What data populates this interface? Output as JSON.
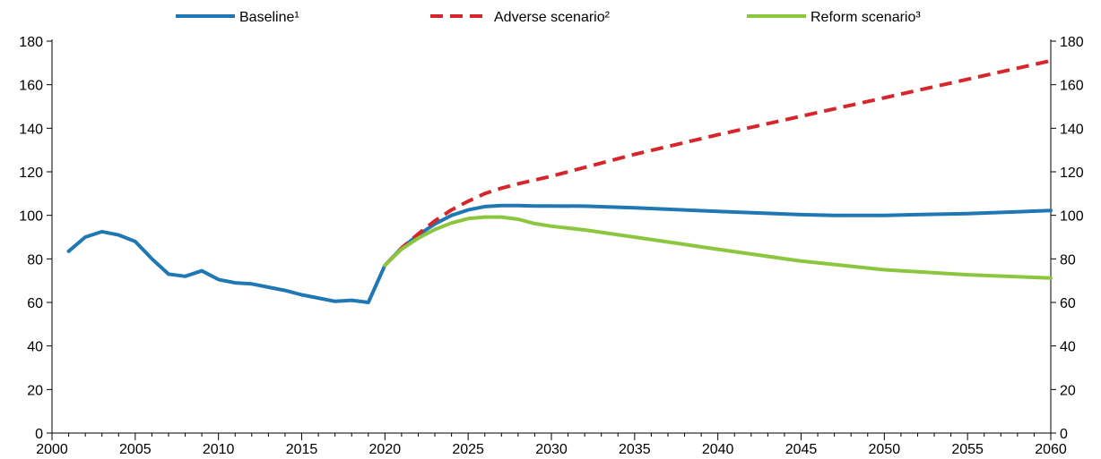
{
  "chart_data": {
    "type": "line",
    "title": "",
    "xlabel": "",
    "ylabel": "",
    "xlim": [
      2000,
      2060
    ],
    "ylim": [
      0,
      180
    ],
    "x_ticks": [
      2000,
      2005,
      2010,
      2015,
      2020,
      2025,
      2030,
      2035,
      2040,
      2045,
      2050,
      2055,
      2060
    ],
    "x_tick_labels": [
      "2000",
      "2005",
      "2010",
      "2015",
      "2020",
      "2025",
      "2030",
      "2035",
      "2040",
      "2045",
      "2050",
      "2055",
      "2060"
    ],
    "y_ticks": [
      0,
      20,
      40,
      60,
      80,
      100,
      120,
      140,
      160,
      180
    ],
    "y_tick_labels": [
      "0",
      "20",
      "40",
      "60",
      "80",
      "100",
      "120",
      "140",
      "160",
      "180"
    ],
    "grid": false,
    "legend_position": "top",
    "series": [
      {
        "name": "Baseline¹",
        "color": "#1f78b4",
        "style": "solid",
        "x": [
          2001,
          2002,
          2003,
          2004,
          2005,
          2006,
          2007,
          2008,
          2009,
          2010,
          2011,
          2012,
          2013,
          2014,
          2015,
          2016,
          2017,
          2018,
          2019,
          2020,
          2021,
          2022,
          2023,
          2024,
          2025,
          2026,
          2027,
          2028,
          2029,
          2030,
          2032,
          2035,
          2040,
          2045,
          2047,
          2050,
          2055,
          2060
        ],
        "values": [
          83.5,
          90,
          92.5,
          91,
          88,
          80,
          73,
          72,
          74.5,
          70.5,
          69,
          68.5,
          67,
          65.5,
          63.5,
          62,
          60.5,
          61,
          60,
          77,
          85,
          91,
          96,
          100,
          102.5,
          104,
          104.5,
          104.5,
          104.3,
          104.3,
          104.2,
          103.5,
          101.8,
          100.3,
          100,
          100,
          100.8,
          102.2
        ]
      },
      {
        "name": "Adverse scenario²",
        "color": "#d7262b",
        "style": "dashed",
        "x": [
          2020,
          2021,
          2022,
          2023,
          2024,
          2025,
          2026,
          2027,
          2028,
          2030,
          2035,
          2040,
          2045,
          2050,
          2055,
          2060
        ],
        "values": [
          77,
          85,
          91.5,
          97.5,
          102.5,
          106.5,
          110,
          112.5,
          114.5,
          118,
          128,
          137,
          145.5,
          154,
          162.5,
          171
        ]
      },
      {
        "name": "Reform scenario³",
        "color": "#8cc63e",
        "style": "solid",
        "x": [
          2020,
          2021,
          2022,
          2023,
          2024,
          2025,
          2026,
          2027,
          2028,
          2029,
          2030,
          2032,
          2035,
          2040,
          2045,
          2050,
          2055,
          2060
        ],
        "values": [
          77,
          84.5,
          89.5,
          93.5,
          96.5,
          98.5,
          99.2,
          99.2,
          98.2,
          96.2,
          95,
          93.3,
          90,
          84.4,
          79,
          75,
          72.7,
          71.2
        ]
      }
    ]
  }
}
